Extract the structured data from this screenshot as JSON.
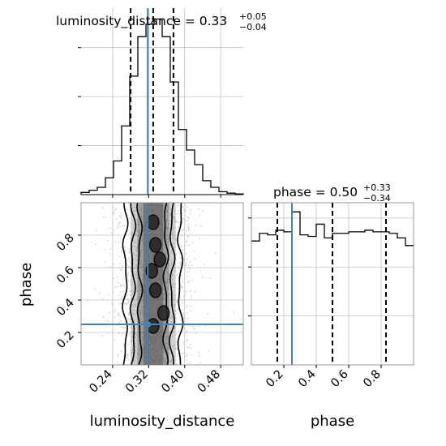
{
  "chart_data": [
    {
      "type": "histogram",
      "panel": "luminosity_distance marginal",
      "title": {
        "main": "luminosity_distance = 0.33",
        "upper": "+0.05",
        "lower": "−0.04"
      },
      "x": {
        "ylim_range": [
          0.17,
          0.53
        ]
      },
      "bin_edges": [
        0.17,
        0.188,
        0.206,
        0.224,
        0.242,
        0.26,
        0.278,
        0.296,
        0.314,
        0.332,
        0.35,
        0.368,
        0.386,
        0.404,
        0.422,
        0.44,
        0.458,
        0.476,
        0.494,
        0.512,
        0.53
      ],
      "counts": [
        0.3,
        0.6,
        1.0,
        2.3,
        4.6,
        9.4,
        16.2,
        21.6,
        23.3,
        24.0,
        21.6,
        15.4,
        8.9,
        6.1,
        4.1,
        1.9,
        1.0,
        0.4,
        0.2,
        0.1
      ],
      "ylim": [
        0,
        25.5
      ],
      "quantile_lines": [
        0.28,
        0.33,
        0.375
      ],
      "truth": 0.318,
      "yticks_major": [
        10,
        20,
        30
      ],
      "grid": true
    },
    {
      "type": "histogram",
      "panel": "phase marginal",
      "title": {
        "main": "phase = 0.50",
        "upper": "+0.33",
        "lower": "−0.34"
      },
      "bin_edges": [
        0.0,
        0.05,
        0.1,
        0.15,
        0.2,
        0.25,
        0.3,
        0.35,
        0.4,
        0.45,
        0.5,
        0.55,
        0.6,
        0.65,
        0.7,
        0.75,
        0.8,
        0.85,
        0.9,
        0.95,
        1.0
      ],
      "counts": [
        0.81,
        0.86,
        0.85,
        0.88,
        0.87,
        1.0,
        0.85,
        0.84,
        0.92,
        0.83,
        0.86,
        0.86,
        0.87,
        0.87,
        0.88,
        0.87,
        0.87,
        0.86,
        0.83,
        0.78
      ],
      "ylim": [
        0,
        1.06
      ],
      "quantile_lines": [
        0.16,
        0.5,
        0.83
      ],
      "truth": 0.25,
      "grid": true
    },
    {
      "type": "scatter",
      "panel": "2d joint",
      "xlabel": "luminosity_distance",
      "ylabel": "phase",
      "xlim": [
        0.17,
        0.53
      ],
      "ylim": [
        0.0,
        1.0
      ],
      "truth": {
        "x": 0.318,
        "y": 0.25
      },
      "contour_levels": 4
    }
  ],
  "axes": {
    "xlabel_left": "luminosity_distance",
    "xlabel_right": "phase",
    "ylabel_left": "phase",
    "lumi_ticks": [
      {
        "value": 0.24,
        "label": "0.24"
      },
      {
        "value": 0.32,
        "label": "0.32"
      },
      {
        "value": 0.4,
        "label": "0.40"
      },
      {
        "value": 0.48,
        "label": "0.48"
      }
    ],
    "phase_ticks": [
      {
        "value": 0.2,
        "label": "0.2"
      },
      {
        "value": 0.4,
        "label": "0.4"
      },
      {
        "value": 0.6,
        "label": "0.6"
      },
      {
        "value": 0.8,
        "label": "0.8"
      }
    ]
  },
  "colors": {
    "truth": "#4682b4",
    "hist": "#000000",
    "grid": "#c0c0c0",
    "points": "#bdbdbd"
  }
}
